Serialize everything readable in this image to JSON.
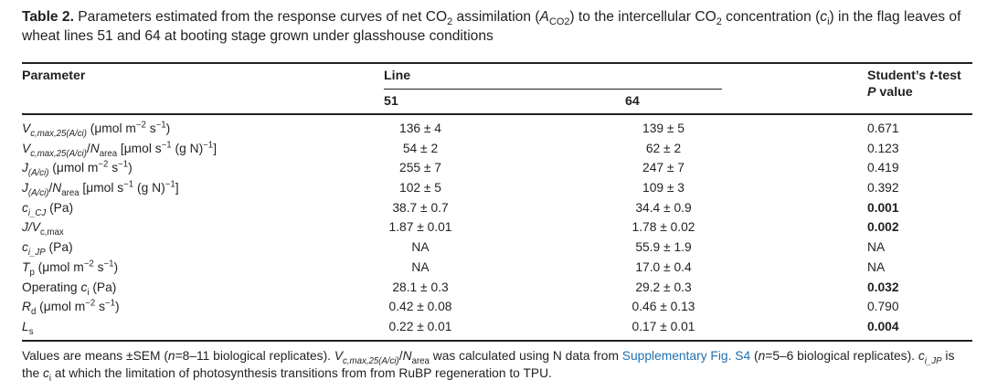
{
  "caption": {
    "label": "Table 2.",
    "t1": " Parameters estimated from the response curves of net CO",
    "t1s": "2",
    "t2": " assimilation (",
    "t2a": "A",
    "t2s": "CO2",
    "t3": ") to the intercellular CO",
    "t3s": "2",
    "t4": " concentration (",
    "t4c": "c",
    "t4s": "i",
    "t5": ") in the flag leaves of wheat lines 51 and 64 at booting stage grown under glasshouse conditions"
  },
  "header": {
    "parameter": "Parameter",
    "line": "Line",
    "line_51": "51",
    "line_64": "64",
    "student_a": "Student’s ",
    "student_t": "t",
    "student_b": "-test",
    "pvalue_p": "P",
    "pvalue_rest": " value"
  },
  "rows": [
    {
      "v51": "136 ± 4",
      "v64": "139 ± 5",
      "p": "0.671"
    },
    {
      "v51": "54 ± 2",
      "v64": "62 ± 2",
      "p": "0.123"
    },
    {
      "v51": "255 ± 7",
      "v64": "247 ± 7",
      "p": "0.419"
    },
    {
      "v51": "102 ± 5",
      "v64": "109 ± 3",
      "p": "0.392"
    },
    {
      "v51": "38.7 ± 0.7",
      "v64": "34.4 ± 0.9",
      "p": "0.001"
    },
    {
      "v51": "1.87 ± 0.01",
      "v64": "1.78 ± 0.02",
      "p": "0.002"
    },
    {
      "v51": "NA",
      "v64": "55.9 ± 1.9",
      "p": "NA"
    },
    {
      "v51": "NA",
      "v64": "17.0 ± 0.4",
      "p": "NA"
    },
    {
      "v51": "28.1 ± 0.3",
      "v64": "29.2 ± 0.3",
      "p": "0.032"
    },
    {
      "v51": "0.42 ± 0.08",
      "v64": "0.46 ± 0.13",
      "p": "0.790"
    },
    {
      "v51": "0.22 ± 0.01",
      "v64": "0.17 ± 0.01",
      "p": "0.004"
    }
  ],
  "params": {
    "vc": "V",
    "vc_sub": "c,max,25(A/ci)",
    "vc_unit": " (μmol m",
    "vc_e1": "−2",
    "vc_unit2": " s",
    "vc_e2": "−1",
    "vc_end": ")",
    "vn": "V",
    "vn_sub": "c,max,25(A/ci)",
    "vn_slash": "/",
    "vn_N": "N",
    "vn_Nsub": "area",
    "vn_unit": " [μmol s",
    "vn_e1": "−1",
    "vn_unit2": " (g N)",
    "vn_e2": "−1",
    "vn_end": "]",
    "j": "J",
    "j_sub": "(A/ci)",
    "j_unit": " (μmol m",
    "j_e1": "−2",
    "j_unit2": " s",
    "j_e2": "−1",
    "j_end": ")",
    "jn": "J",
    "jn_sub": "(A/ci)",
    "jn_slash": "/",
    "jn_N": "N",
    "jn_Nsub": "area",
    "jn_unit": " [μmol s",
    "jn_e1": "−1",
    "jn_unit2": " (g N)",
    "jn_e2": "−1",
    "jn_end": "]",
    "cc": "c",
    "cc_sub": "i_CJ",
    "cc_unit": " (Pa)",
    "jv": "J/V",
    "jv_sub": "c,max",
    "cp": "c",
    "cp_sub": "i_JP",
    "cp_unit": " (Pa)",
    "tp": "T",
    "tp_sub": "p",
    "tp_unit": " (μmol m",
    "tp_e1": "−2",
    "tp_unit2": " s",
    "tp_e2": "−1",
    "tp_end": ")",
    "op": "Operating ",
    "op_c": "c",
    "op_sub": "i",
    "op_unit": " (Pa)",
    "rd": "R",
    "rd_sub": "d",
    "rd_unit": " (μmol m",
    "rd_e1": "−2",
    "rd_unit2": " s",
    "rd_e2": "−1",
    "rd_end": ")",
    "ls": "L",
    "ls_sub": "s"
  },
  "footnote": {
    "a": "Values are means ±SEM (",
    "n": "n",
    "b": "=8–11 biological replicates). ",
    "v": "V",
    "vsub": "c,max,25(A/ci)",
    "slash": "/",
    "N": "N",
    "Nsub": "area",
    "c": " was calculated using N data from ",
    "link": "Supplementary Fig. S4",
    "d": " (",
    "n2": "n",
    "e": "=5–6 biological replicates). ",
    "ci": "c",
    "cisub": "i_JP",
    "f": " is the ",
    "ci2": "c",
    "ci2sub": "i",
    "g": " at which the limitation of photosynthesis transitions from from RuBP regeneration to TPU."
  }
}
